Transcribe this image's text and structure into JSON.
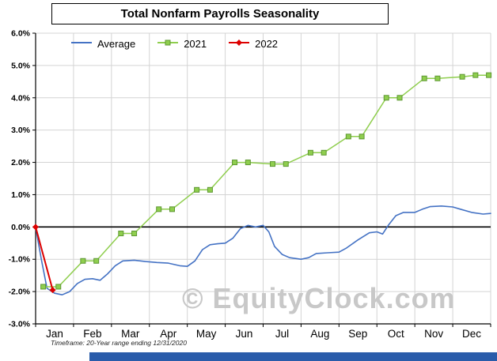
{
  "title": "Total Nonfarm Payrolls Seasonality",
  "footnote": "Timeframe: 20-Year range ending 12/31/2020",
  "watermark": "© EquityClock.com",
  "colors": {
    "average": "#4472c4",
    "y2021": "#8fce4e",
    "y2021_marker_stroke": "#5d9732",
    "y2022": "#dd0000",
    "grid": "#d4d4d4",
    "axis": "#000000",
    "watermark": "#c8c8c8",
    "banner": "#2a5caa"
  },
  "chart_data": {
    "type": "line",
    "title": "Total Nonfarm Payrolls Seasonality",
    "xlabel": "",
    "ylabel": "",
    "grid": true,
    "legend_position": "top-left",
    "x_categories": [
      "Jan",
      "Feb",
      "Mar",
      "Apr",
      "May",
      "Jun",
      "Jul",
      "Aug",
      "Sep",
      "Oct",
      "Nov",
      "Dec"
    ],
    "x_range_months": [
      0,
      12
    ],
    "y_axis": {
      "min": -3,
      "max": 6,
      "step": 1,
      "tick_labels": [
        "6.0%",
        "5.0%",
        "4.0%",
        "3.0%",
        "2.0%",
        "1.0%",
        "0.0%",
        "-1.0%",
        "-2.0%",
        "-3.0%"
      ]
    },
    "series": [
      {
        "name": "Average",
        "color": "#4472c4",
        "marker": "none",
        "line_width": 1.6,
        "x": [
          0,
          0.15,
          0.3,
          0.5,
          0.7,
          0.9,
          1.1,
          1.3,
          1.5,
          1.7,
          1.9,
          2.1,
          2.3,
          2.6,
          2.9,
          3.2,
          3.5,
          3.8,
          4.0,
          4.2,
          4.4,
          4.6,
          4.8,
          5.0,
          5.2,
          5.4,
          5.6,
          5.8,
          6.0,
          6.15,
          6.3,
          6.5,
          6.7,
          7.0,
          7.2,
          7.4,
          7.7,
          8.0,
          8.2,
          8.5,
          8.8,
          9.0,
          9.15,
          9.3,
          9.5,
          9.7,
          10.0,
          10.2,
          10.4,
          10.7,
          11.0,
          11.2,
          11.5,
          11.8,
          12.0
        ],
        "y": [
          0.0,
          -1.0,
          -1.9,
          -2.05,
          -2.1,
          -2.0,
          -1.75,
          -1.62,
          -1.6,
          -1.65,
          -1.45,
          -1.2,
          -1.05,
          -1.03,
          -1.07,
          -1.1,
          -1.12,
          -1.2,
          -1.22,
          -1.05,
          -0.7,
          -0.55,
          -0.52,
          -0.5,
          -0.35,
          -0.05,
          0.05,
          0.0,
          0.05,
          -0.15,
          -0.6,
          -0.85,
          -0.95,
          -1.0,
          -0.95,
          -0.82,
          -0.8,
          -0.78,
          -0.65,
          -0.4,
          -0.18,
          -0.15,
          -0.22,
          0.05,
          0.35,
          0.45,
          0.45,
          0.55,
          0.63,
          0.65,
          0.62,
          0.55,
          0.45,
          0.4,
          0.42
        ]
      },
      {
        "name": "2021",
        "color": "#8fce4e",
        "marker": "square",
        "marker_stroke": "#5d9732",
        "line_width": 1.5,
        "x": [
          0.2,
          0.6,
          1.25,
          1.6,
          2.25,
          2.6,
          3.25,
          3.6,
          4.25,
          4.6,
          5.25,
          5.6,
          6.25,
          6.6,
          7.25,
          7.6,
          8.25,
          8.6,
          9.25,
          9.6,
          10.25,
          10.6,
          11.25,
          11.6,
          11.95
        ],
        "y": [
          -1.85,
          -1.85,
          -1.05,
          -1.05,
          -0.2,
          -0.2,
          0.55,
          0.55,
          1.15,
          1.15,
          2.0,
          2.0,
          1.95,
          1.95,
          2.3,
          2.3,
          2.8,
          2.8,
          4.0,
          4.0,
          4.6,
          4.6,
          4.65,
          4.7,
          4.7
        ]
      },
      {
        "name": "2022",
        "color": "#dd0000",
        "marker": "diamond",
        "line_width": 2,
        "x": [
          0,
          0.45
        ],
        "y": [
          0.0,
          -1.95
        ]
      }
    ]
  }
}
